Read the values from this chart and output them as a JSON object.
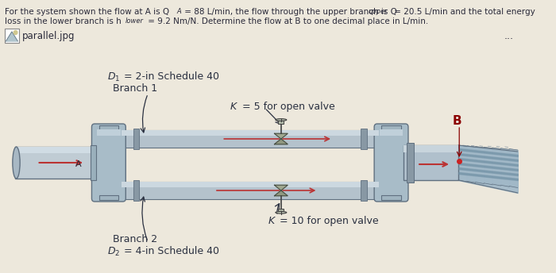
{
  "bg_paper": "#ede8dc",
  "text_color": "#2a2a3a",
  "pipe_main_color": "#b8c8d4",
  "pipe_branch_color": "#b0c0cc",
  "pipe_dark": "#8898a4",
  "pipe_border": "#607080",
  "junction_color": "#a0b0bc",
  "valve_color": "#909888",
  "arrow_color": "#bb3333",
  "B_color": "#8b0000",
  "hose_color": "#90a8b8",
  "hose_line_color": "#607880",
  "header1": "For the system shown the flow at A is Q",
  "header1b": " = 88 L/min, the flow through the upper branch is Q",
  "header1c": " = 20.5 L/min and the total energy",
  "header2": "loss in the lower branch is h",
  "header2b": " = 9.2 Nm/N. Determine the flow at B to one decimal place in L/min.",
  "label_D1": "D",
  "label_D1b": "1",
  "label_D1c": " = 2-in Schedule 40",
  "label_branch1": "Branch 1",
  "label_K5": "K",
  "label_K5b": " = 5 for open valve",
  "label_B": "B",
  "label_K10": "K",
  "label_K10b": " = 10 for open valve",
  "label_branch2": "Branch 2",
  "label_D2": "D",
  "label_D2b": "2",
  "label_D2c": " = 4-in Schedule 40",
  "dots": "...",
  "icon_label": "parallel.jpg"
}
